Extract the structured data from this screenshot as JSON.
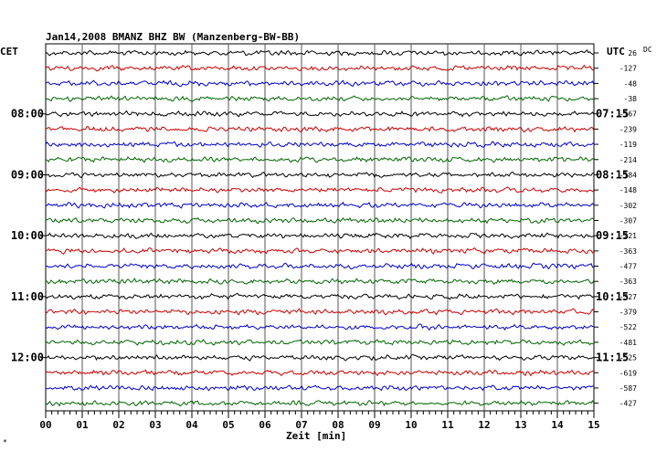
{
  "header": {
    "title": "Jan14,2008   BMANZ BHZ BW (Manzenberg-BW-BB)",
    "left_label": "CET",
    "right_label": "UTC",
    "dc_label": "DC"
  },
  "corner_mark": "*",
  "chart_data": {
    "type": "line",
    "title": "Jan14,2008   BMANZ BHZ BW (Manzenberg-BW-BB)",
    "xlabel": "Zeit [min]",
    "ylabel": "",
    "xlim": [
      0,
      15
    ],
    "x_ticks": [
      "00",
      "01",
      "02",
      "03",
      "04",
      "05",
      "06",
      "07",
      "08",
      "09",
      "10",
      "11",
      "12",
      "13",
      "14",
      "15"
    ],
    "cet_hour_labels": [
      "08:00",
      "09:00",
      "10:00",
      "11:00",
      "12:00"
    ],
    "utc_hour_labels": [
      "07:15",
      "08:15",
      "09:15",
      "10:15",
      "11:15"
    ],
    "hour_label_trace_index": [
      4,
      8,
      12,
      16,
      20
    ],
    "trace_count": 24,
    "trace_colors": [
      "#000000",
      "#cc0000",
      "#0000cc",
      "#006600"
    ],
    "dc_offsets": [
      "26",
      "-127",
      "-48",
      "-38",
      "-167",
      "-239",
      "-119",
      "-214",
      "-184",
      "-148",
      "-302",
      "-307",
      "-221",
      "-363",
      "-477",
      "-363",
      "-327",
      "-379",
      "-522",
      "-481",
      "-525",
      "-619",
      "-587",
      "-427"
    ],
    "grid": true,
    "legend": "none"
  }
}
